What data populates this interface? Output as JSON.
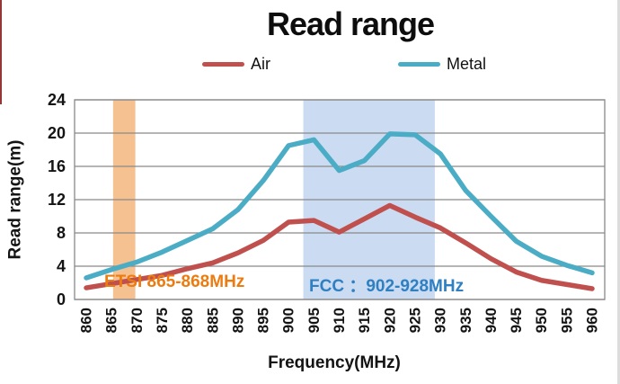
{
  "chart_data": {
    "type": "line",
    "title": "Read range",
    "x_label": "Frequency(MHz)",
    "y_label": "Read range(m)",
    "x_unit": "MHz",
    "x_ticks": [
      860,
      865,
      870,
      875,
      880,
      885,
      890,
      895,
      900,
      905,
      910,
      915,
      920,
      925,
      930,
      935,
      940,
      945,
      950,
      955,
      960
    ],
    "y_ticks": [
      0,
      4,
      8,
      12,
      16,
      20,
      24
    ],
    "ylim": [
      0,
      24
    ],
    "grid": "horizontal",
    "legend_position": "top",
    "series": [
      {
        "name": "Air",
        "color": "#C0504D",
        "values": [
          1.4,
          1.9,
          2.4,
          2.9,
          3.7,
          4.4,
          5.6,
          7.1,
          9.3,
          9.5,
          8.1,
          9.7,
          11.3,
          9.9,
          8.6,
          6.8,
          4.9,
          3.3,
          2.3,
          1.8,
          1.3
        ]
      },
      {
        "name": "Metal",
        "color": "#4BACC6",
        "values": [
          2.6,
          3.6,
          4.5,
          5.7,
          7.1,
          8.5,
          10.8,
          14.3,
          18.5,
          19.2,
          15.5,
          16.7,
          19.9,
          19.8,
          17.5,
          13.1,
          10.0,
          7.0,
          5.2,
          4.1,
          3.2
        ]
      }
    ],
    "bands": [
      {
        "label": "ETSI 865-868MHz",
        "label_color": "#EC7C10",
        "fill": "#F6C190",
        "range_mhz": [
          865,
          868
        ],
        "draw_from_mhz": 865.3,
        "draw_to_mhz": 869.7
      },
      {
        "label": "FCC ：902-928MHz",
        "label_color": "#2E80C3",
        "fill": "#CBDBF1",
        "range_mhz": [
          902,
          928
        ],
        "draw_from_mhz": 902.9,
        "draw_to_mhz": 928.9
      }
    ],
    "colors": {
      "gridline": "#898989",
      "plot_border": "#898989",
      "text": "#141414",
      "page_edge_left": "#953735",
      "page_edge_right": "#dcdcdc"
    }
  }
}
